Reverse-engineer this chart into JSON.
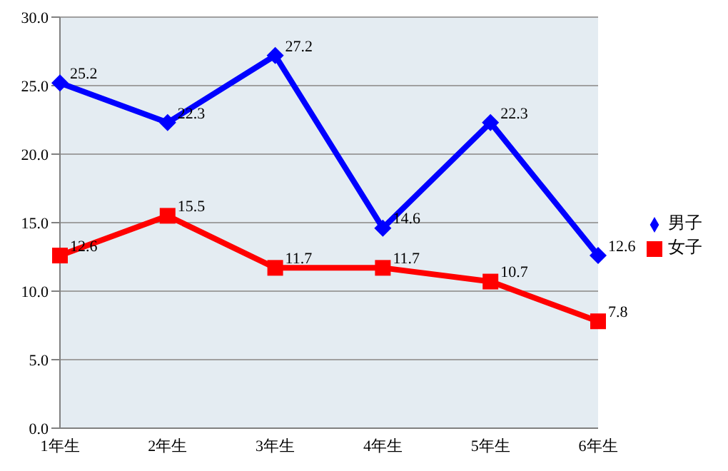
{
  "chart_data": {
    "type": "line",
    "categories": [
      "1年生",
      "2年生",
      "3年生",
      "4年生",
      "5年生",
      "6年生"
    ],
    "series": [
      {
        "name": "男子",
        "color": "#0000ff",
        "marker": "diamond",
        "values": [
          25.2,
          22.3,
          27.2,
          14.6,
          22.3,
          12.6
        ]
      },
      {
        "name": "女子",
        "color": "#ff0000",
        "marker": "square",
        "values": [
          12.6,
          15.5,
          11.7,
          11.7,
          10.7,
          7.8
        ]
      }
    ],
    "ylim": [
      0,
      30
    ],
    "yticks": [
      {
        "value": 0,
        "label": "0.0"
      },
      {
        "value": 5,
        "label": "5.0"
      },
      {
        "value": 10,
        "label": "10.0"
      },
      {
        "value": 15,
        "label": "15.0"
      },
      {
        "value": 20,
        "label": "20.0"
      },
      {
        "value": 25,
        "label": "25.0"
      },
      {
        "value": 30,
        "label": "30.0"
      }
    ],
    "grid": "y",
    "legend": "right",
    "data_labels": true,
    "line_style": "solid"
  }
}
